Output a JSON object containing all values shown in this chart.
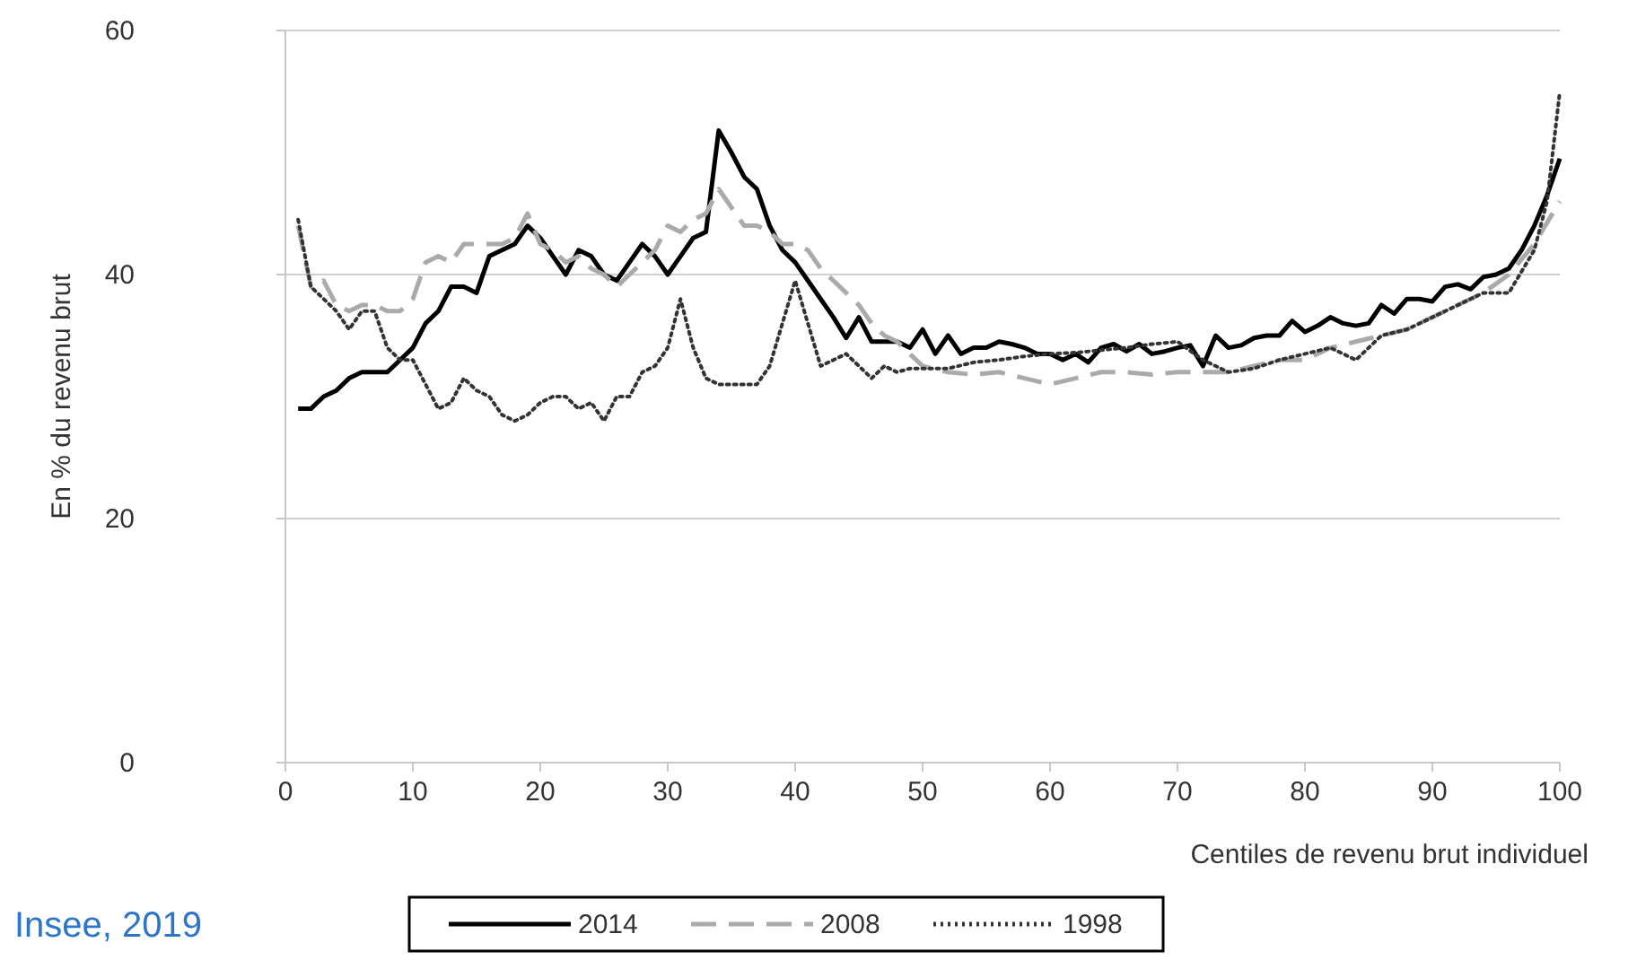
{
  "chart_data": {
    "type": "line",
    "xlabel": "Centiles de revenu brut individuel",
    "ylabel": "En % du revenu brut",
    "annotations": [
      "Insee, 2019"
    ],
    "xlim": [
      0,
      100
    ],
    "xticks": [
      0,
      10,
      20,
      30,
      40,
      50,
      60,
      70,
      80,
      90,
      100
    ],
    "ylim": [
      0,
      60
    ],
    "yticks": [
      0,
      20,
      40,
      60
    ],
    "grid": "y",
    "legend": "bottom",
    "marker": "none",
    "series": [
      {
        "name": "2014",
        "color": "#000000",
        "line_style": "solid",
        "x": [
          1,
          2,
          3,
          4,
          5,
          6,
          7,
          8,
          9,
          10,
          11,
          12,
          13,
          14,
          15,
          16,
          17,
          18,
          19,
          20,
          21,
          22,
          23,
          24,
          25,
          26,
          27,
          28,
          29,
          30,
          31,
          32,
          33,
          34,
          35,
          36,
          37,
          38,
          39,
          40,
          41,
          42,
          43,
          44,
          45,
          46,
          47,
          48,
          49,
          50,
          51,
          52,
          53,
          54,
          55,
          56,
          57,
          58,
          59,
          60,
          61,
          62,
          63,
          64,
          65,
          66,
          67,
          68,
          69,
          70,
          71,
          72,
          73,
          74,
          75,
          76,
          77,
          78,
          79,
          80,
          81,
          82,
          83,
          84,
          85,
          86,
          87,
          88,
          89,
          90,
          91,
          92,
          93,
          94,
          95,
          96,
          97,
          98,
          99,
          100
        ],
        "values": [
          29,
          29,
          30,
          30.5,
          31.5,
          32,
          32,
          32,
          33,
          34,
          36,
          37,
          39,
          39,
          38.5,
          41.5,
          42,
          42.5,
          44,
          43,
          41.5,
          40,
          42,
          41.5,
          40,
          39.5,
          41,
          42.5,
          41.5,
          40,
          41.5,
          43,
          43.5,
          51.8,
          50,
          48,
          47,
          44,
          42,
          41,
          39.5,
          38,
          36.5,
          34.8,
          36.5,
          34.5,
          34.5,
          34.5,
          34,
          35.5,
          33.5,
          35,
          33.5,
          34,
          34,
          34.5,
          34.3,
          34,
          33.5,
          33.5,
          33,
          33.5,
          32.8,
          34,
          34.3,
          33.7,
          34.3,
          33.5,
          33.7,
          34,
          34.2,
          32.5,
          35,
          34,
          34.2,
          34.8,
          35,
          35,
          36.2,
          35.3,
          35.8,
          36.5,
          36,
          35.8,
          36,
          37.5,
          36.8,
          38,
          38,
          37.8,
          39,
          39.2,
          38.8,
          39.8,
          40,
          40.5,
          42,
          44,
          46.5,
          49.5
        ]
      },
      {
        "name": "2008",
        "color": "#aaaaaa",
        "line_style": "dashed",
        "x": [
          1,
          2,
          3,
          4,
          5,
          6,
          7,
          8,
          9,
          10,
          11,
          12,
          13,
          14,
          15,
          16,
          17,
          18,
          19,
          20,
          21,
          22,
          23,
          24,
          25,
          26,
          27,
          28,
          29,
          30,
          31,
          32,
          33,
          34,
          35,
          36,
          37,
          38,
          39,
          40,
          41,
          42,
          43,
          44,
          45,
          46,
          47,
          48,
          49,
          50,
          52,
          54,
          56,
          58,
          60,
          62,
          64,
          66,
          68,
          70,
          72,
          74,
          76,
          78,
          80,
          82,
          84,
          86,
          88,
          90,
          92,
          94,
          96,
          98,
          100
        ],
        "values": [
          44,
          39,
          39.5,
          37.5,
          37,
          37.5,
          37.5,
          37,
          37,
          38,
          41,
          41.5,
          41,
          42.5,
          42.5,
          42.5,
          42.5,
          43,
          45,
          42.5,
          42,
          41,
          41.5,
          40.5,
          40,
          39,
          40,
          41,
          42,
          44,
          43.5,
          44.5,
          45,
          47,
          45.5,
          44,
          44,
          43.5,
          42.5,
          42.5,
          42,
          40.5,
          39.5,
          38.5,
          37.5,
          36,
          35,
          34.5,
          33.5,
          32.5,
          32,
          31.8,
          32,
          31.5,
          31,
          31.5,
          32,
          32,
          31.8,
          32,
          32,
          32,
          32.5,
          33,
          33,
          34,
          34.5,
          35,
          35.5,
          36.5,
          37.5,
          38.5,
          40,
          42.5,
          46
        ]
      },
      {
        "name": "1998",
        "color": "#333333",
        "line_style": "dotted",
        "x": [
          1,
          2,
          3,
          4,
          5,
          6,
          7,
          8,
          9,
          10,
          11,
          12,
          13,
          14,
          15,
          16,
          17,
          18,
          19,
          20,
          21,
          22,
          23,
          24,
          25,
          26,
          27,
          28,
          29,
          30,
          31,
          32,
          33,
          34,
          35,
          36,
          37,
          38,
          39,
          40,
          41,
          42,
          43,
          44,
          45,
          46,
          47,
          48,
          49,
          50,
          52,
          54,
          56,
          58,
          60,
          62,
          64,
          66,
          68,
          70,
          72,
          74,
          76,
          78,
          80,
          82,
          84,
          86,
          88,
          90,
          92,
          94,
          96,
          98,
          99,
          100
        ],
        "values": [
          44.5,
          39,
          38,
          37,
          35.5,
          37,
          37,
          34,
          33,
          33,
          31,
          29,
          29.5,
          31.5,
          30.5,
          30,
          28.5,
          28,
          28.5,
          29.5,
          30,
          30,
          29,
          29.5,
          28,
          30,
          30,
          32,
          32.5,
          34,
          38,
          34,
          31.5,
          31,
          31,
          31,
          31,
          32.5,
          36,
          39.5,
          36,
          32.5,
          33,
          33.5,
          32.5,
          31.5,
          32.5,
          32,
          32.3,
          32.3,
          32.3,
          32.8,
          33,
          33.3,
          33.5,
          33.6,
          33.8,
          34,
          34.3,
          34.5,
          33,
          32,
          32.3,
          33,
          33.5,
          34,
          33,
          35,
          35.5,
          36.5,
          37.5,
          38.5,
          38.5,
          42,
          46,
          55
        ]
      }
    ]
  }
}
